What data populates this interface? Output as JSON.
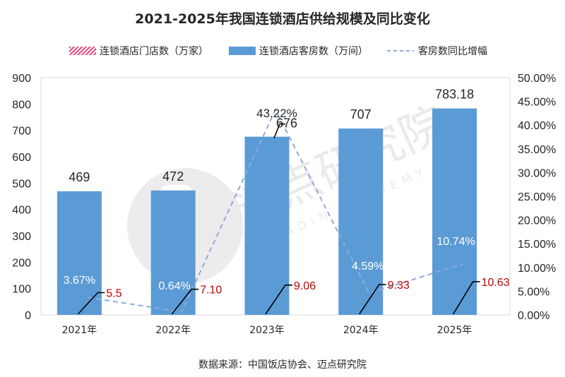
{
  "chart_data": {
    "type": "bar",
    "title": "2021-2025年我国连锁酒店供给规模及同比变化",
    "categories": [
      "2021年",
      "2022年",
      "2023年",
      "2024年",
      "2025年"
    ],
    "series": [
      {
        "name": "连锁酒店门店数（万家）",
        "values": [
          5.5,
          7.1,
          9.06,
          9.33,
          10.63
        ],
        "labels": [
          "5.5",
          "7.10",
          "9.06",
          "9.33",
          "10.63"
        ],
        "color": "#e0457b"
      },
      {
        "name": "连锁酒店客房数（万间）",
        "values": [
          469,
          472,
          676,
          707,
          783.18
        ],
        "labels": [
          "469",
          "472",
          "676",
          "707",
          "783.18"
        ],
        "color": "#5b9bd5"
      },
      {
        "name": "客房数同比增幅",
        "values": [
          3.67,
          0.64,
          43.22,
          4.59,
          10.74
        ],
        "labels": [
          "3.67%",
          "0.64%",
          "43.22%",
          "4.59%",
          "10.74%"
        ],
        "color": "#8eaadb"
      }
    ],
    "y_left": {
      "min": 0,
      "max": 900,
      "step": 100,
      "ticks": [
        "0",
        "100",
        "200",
        "300",
        "400",
        "500",
        "600",
        "700",
        "800",
        "900"
      ]
    },
    "y_right": {
      "min": 0,
      "max": 50,
      "step": 5,
      "ticks": [
        "0.00%",
        "5.00%",
        "10.00%",
        "15.00%",
        "20.00%",
        "25.00%",
        "30.00%",
        "35.00%",
        "40.00%",
        "45.00%",
        "50.00%"
      ]
    },
    "legend_position": "top",
    "grid": false
  },
  "source_text": "数据来源：中国饭店协会、迈点研究院",
  "watermark": {
    "text": "迈点研究院",
    "subtext": "MEADIN ACADEMY"
  }
}
